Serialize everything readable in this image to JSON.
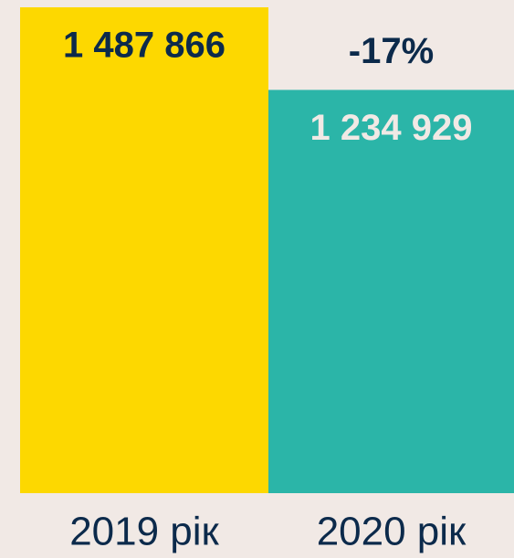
{
  "chart_data": {
    "type": "bar",
    "categories": [
      "2019 рік",
      "2020 рік"
    ],
    "values": [
      1487866,
      1234929
    ],
    "value_labels": [
      "1 487 866",
      "1 234 929"
    ],
    "colors": [
      "#fdd800",
      "#2bb5a8"
    ],
    "annotation": "-17%"
  }
}
